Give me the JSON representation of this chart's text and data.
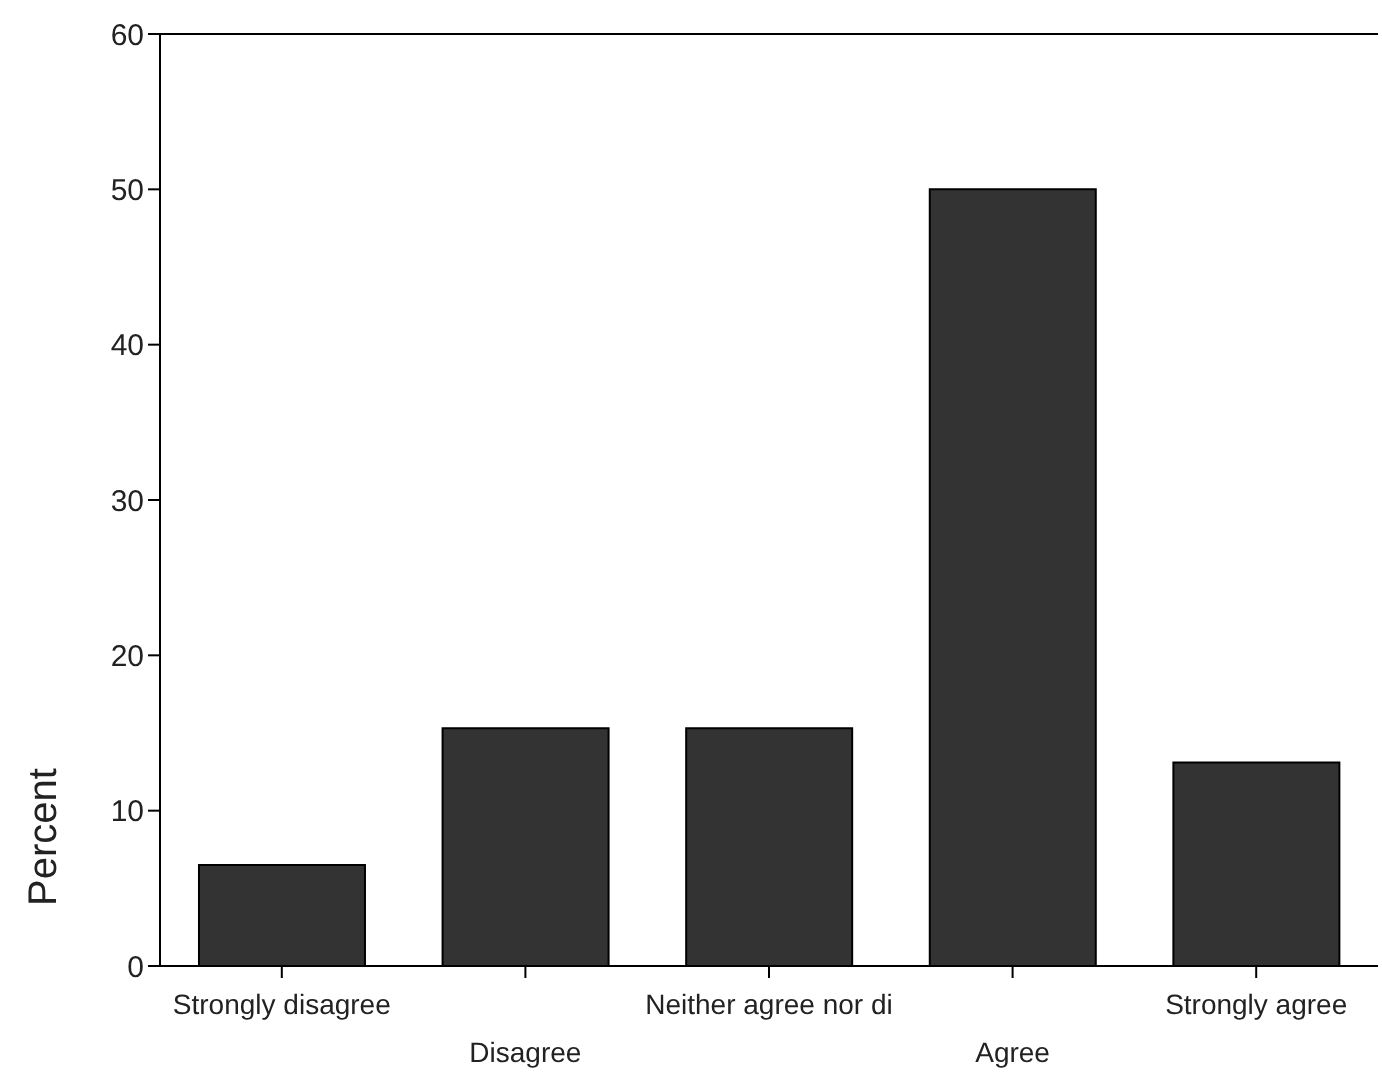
{
  "chart_data": {
    "type": "bar",
    "ylabel": "Percent",
    "categories": [
      "Strongly disagree",
      "Disagree",
      "Neither agree nor di",
      "Agree",
      "Strongly agree"
    ],
    "values": [
      6.5,
      15.3,
      15.3,
      50,
      13.1
    ],
    "color": "#333333",
    "ylim": [
      0,
      60
    ],
    "yticks": [
      0,
      10,
      20,
      30,
      40,
      50,
      60
    ],
    "grid": false,
    "legend": false
  }
}
